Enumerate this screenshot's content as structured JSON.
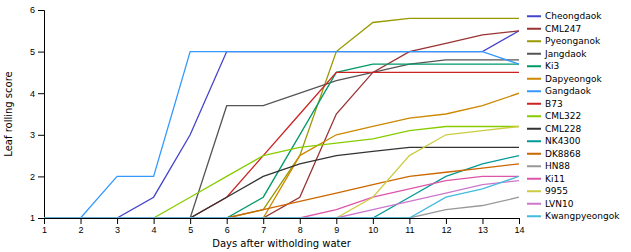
{
  "chart_data": {
    "type": "line",
    "xlabel": "Days after witholding water",
    "ylabel": "Leaf rolling score",
    "x": [
      1,
      2,
      3,
      4,
      5,
      6,
      7,
      8,
      9,
      10,
      11,
      12,
      13,
      14
    ],
    "xlim": [
      1,
      14
    ],
    "ylim": [
      1,
      6
    ],
    "xticks": [
      1,
      2,
      3,
      4,
      5,
      6,
      7,
      8,
      9,
      10,
      11,
      12,
      13,
      14
    ],
    "yticks": [
      1,
      2,
      3,
      4,
      5,
      6
    ],
    "grid": false,
    "legend": "right",
    "series": [
      {
        "name": "Cheongdaok",
        "color": "#4444cc",
        "values": [
          1,
          1,
          1,
          1.5,
          3,
          5,
          5,
          5,
          5,
          5,
          5,
          5,
          5,
          5.5
        ]
      },
      {
        "name": "CML247",
        "color": "#993333",
        "values": [
          1,
          1,
          1,
          1,
          1,
          1,
          1,
          1.5,
          3.5,
          4.5,
          5,
          5.2,
          5.4,
          5.5
        ]
      },
      {
        "name": "Pyeonganok",
        "color": "#999900",
        "values": [
          1,
          1,
          1,
          1,
          1,
          1,
          1.2,
          2.5,
          5,
          5.7,
          5.8,
          5.8,
          5.8,
          5.8
        ]
      },
      {
        "name": "Jangdaok",
        "color": "#555555",
        "values": [
          1,
          1,
          1,
          1,
          1,
          3.7,
          3.7,
          4,
          4.3,
          4.5,
          4.7,
          4.8,
          4.8,
          4.8
        ]
      },
      {
        "name": "Ki3",
        "color": "#009966",
        "values": [
          1,
          1,
          1,
          1,
          1,
          1,
          1.5,
          3,
          4.5,
          4.7,
          4.7,
          4.7,
          4.7,
          4.7
        ]
      },
      {
        "name": "Dapyeongok",
        "color": "#cc8800",
        "values": [
          1,
          1,
          1,
          1,
          1,
          1,
          1,
          2.5,
          3,
          3.2,
          3.4,
          3.5,
          3.7,
          4.0
        ]
      },
      {
        "name": "Gangdaok",
        "color": "#3399ff",
        "values": [
          1,
          1,
          2,
          2,
          5,
          5,
          5,
          5,
          5,
          5,
          5,
          5,
          5,
          4.7
        ]
      },
      {
        "name": "B73",
        "color": "#cc2222",
        "values": [
          1,
          1,
          1,
          1,
          1,
          1.5,
          2.5,
          3.5,
          4.5,
          4.5,
          4.5,
          4.5,
          4.5,
          4.5
        ]
      },
      {
        "name": "CML322",
        "color": "#88cc00",
        "values": [
          1,
          1,
          1,
          1,
          1.5,
          2,
          2.5,
          2.7,
          2.8,
          2.9,
          3.1,
          3.2,
          3.2,
          3.2
        ]
      },
      {
        "name": "CML228",
        "color": "#333333",
        "values": [
          1,
          1,
          1,
          1,
          1,
          1.5,
          2,
          2.3,
          2.5,
          2.6,
          2.7,
          2.7,
          2.7,
          2.7
        ]
      },
      {
        "name": "NK4300",
        "color": "#009999",
        "values": [
          1,
          1,
          1,
          1,
          1,
          1,
          1,
          1,
          1,
          1,
          1.5,
          2,
          2.3,
          2.5
        ]
      },
      {
        "name": "DK8868",
        "color": "#cc6600",
        "values": [
          1,
          1,
          1,
          1,
          1,
          1,
          1.2,
          1.4,
          1.6,
          1.8,
          2.0,
          2.1,
          2.2,
          2.3
        ]
      },
      {
        "name": "HN88",
        "color": "#999999",
        "values": [
          1,
          1,
          1,
          1,
          1,
          1,
          1,
          1,
          1,
          1,
          1,
          1.2,
          1.3,
          1.5
        ]
      },
      {
        "name": "Ki11",
        "color": "#dd55aa",
        "values": [
          1,
          1,
          1,
          1,
          1,
          1,
          1,
          1,
          1.2,
          1.5,
          1.7,
          1.9,
          2.0,
          2.0
        ]
      },
      {
        "name": "9955",
        "color": "#cccc44",
        "values": [
          1,
          1,
          1,
          1,
          1,
          1,
          1,
          1,
          1,
          1.5,
          2.5,
          3.0,
          3.1,
          3.2
        ]
      },
      {
        "name": "LVN10",
        "color": "#cc77cc",
        "values": [
          1,
          1,
          1,
          1,
          1,
          1,
          1,
          1,
          1,
          1.2,
          1.4,
          1.6,
          1.8,
          1.9
        ]
      },
      {
        "name": "Kwangpyeongok",
        "color": "#44bbdd",
        "values": [
          1,
          1,
          1,
          1,
          1,
          1,
          1,
          1,
          1,
          1,
          1,
          1.5,
          1.7,
          2.0
        ]
      }
    ]
  }
}
